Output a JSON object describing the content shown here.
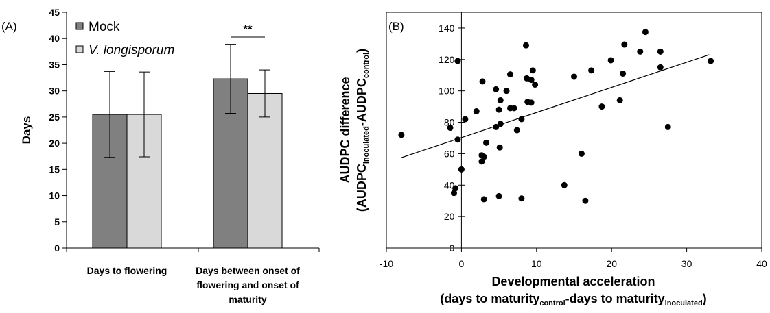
{
  "chart_data": [
    {
      "type": "bar",
      "panel_label": "(A)",
      "ylabel": "Days",
      "ylim": [
        0,
        45
      ],
      "yticks": [
        0,
        5,
        10,
        15,
        20,
        25,
        30,
        35,
        40,
        45
      ],
      "categories": [
        [
          "Days to flowering"
        ],
        [
          "Days between onset of",
          "flowering and onset of",
          "maturity"
        ]
      ],
      "series": [
        {
          "name": "Mock",
          "color": "#808080",
          "values": [
            25.5,
            32.3
          ],
          "error": [
            8.2,
            6.6
          ]
        },
        {
          "name": "V. longisporum",
          "color": "#d9d9d9",
          "values": [
            25.5,
            29.5
          ],
          "error": [
            8.1,
            4.5
          ]
        }
      ],
      "legend_position": "top-left",
      "annotations": [
        {
          "text": "**",
          "category_index": 1
        }
      ],
      "grid": false
    },
    {
      "type": "scatter",
      "panel_label": "(B)",
      "ylabel": {
        "line1": "AUDPC difference",
        "line2": [
          {
            "t": "(AUDPC",
            "sub": false
          },
          {
            "t": "inoculated",
            "sub": true
          },
          {
            "t": "-AUDPC",
            "sub": false
          },
          {
            "t": "control",
            "sub": true
          },
          {
            "t": ")",
            "sub": false
          }
        ]
      },
      "xlabel": {
        "line1": "Developmental acceleration",
        "line2": [
          {
            "t": "(days to maturity",
            "sub": false
          },
          {
            "t": "control",
            "sub": true
          },
          {
            "t": "-days to maturity",
            "sub": false
          },
          {
            "t": "inoculated",
            "sub": true
          },
          {
            "t": ")",
            "sub": false
          }
        ]
      },
      "xlim": [
        -10,
        40
      ],
      "ylim": [
        0,
        150
      ],
      "xticks": [
        -10,
        0,
        10,
        20,
        30,
        40
      ],
      "yticks": [
        0,
        20,
        40,
        60,
        80,
        100,
        120,
        140
      ],
      "trendline": {
        "x": [
          -8,
          33
        ],
        "y": [
          57.5,
          123
        ]
      },
      "points": [
        [
          -8,
          72
        ],
        [
          -1.5,
          76.5
        ],
        [
          -0.5,
          119
        ],
        [
          -0.5,
          69
        ],
        [
          0,
          50
        ],
        [
          0.5,
          82
        ],
        [
          -1,
          35
        ],
        [
          -0.8,
          38
        ],
        [
          2,
          87
        ],
        [
          2.8,
          106
        ],
        [
          2.7,
          59
        ],
        [
          3,
          58
        ],
        [
          2.7,
          55
        ],
        [
          3.3,
          67
        ],
        [
          3,
          31
        ],
        [
          4.6,
          101
        ],
        [
          4.6,
          77
        ],
        [
          5,
          88
        ],
        [
          5.2,
          94
        ],
        [
          5.2,
          79
        ],
        [
          5.1,
          64
        ],
        [
          5,
          33
        ],
        [
          6,
          100
        ],
        [
          6.5,
          89
        ],
        [
          6.5,
          110.5
        ],
        [
          7,
          89
        ],
        [
          7.4,
          75
        ],
        [
          8,
          82
        ],
        [
          8,
          31.5
        ],
        [
          8.6,
          129
        ],
        [
          8.7,
          108
        ],
        [
          8.8,
          93
        ],
        [
          9.3,
          92.5
        ],
        [
          9.5,
          113
        ],
        [
          9.3,
          107
        ],
        [
          9.8,
          104
        ],
        [
          13.7,
          40
        ],
        [
          15,
          109
        ],
        [
          16,
          60
        ],
        [
          16.5,
          30
        ],
        [
          17.3,
          113
        ],
        [
          18.7,
          90
        ],
        [
          19.9,
          119.5
        ],
        [
          21.1,
          94
        ],
        [
          21.5,
          111
        ],
        [
          21.7,
          129.5
        ],
        [
          23.8,
          125
        ],
        [
          24.5,
          137.5
        ],
        [
          26.5,
          125
        ],
        [
          26.5,
          115
        ],
        [
          27.5,
          77
        ],
        [
          33.2,
          119
        ]
      ],
      "grid": false
    }
  ]
}
